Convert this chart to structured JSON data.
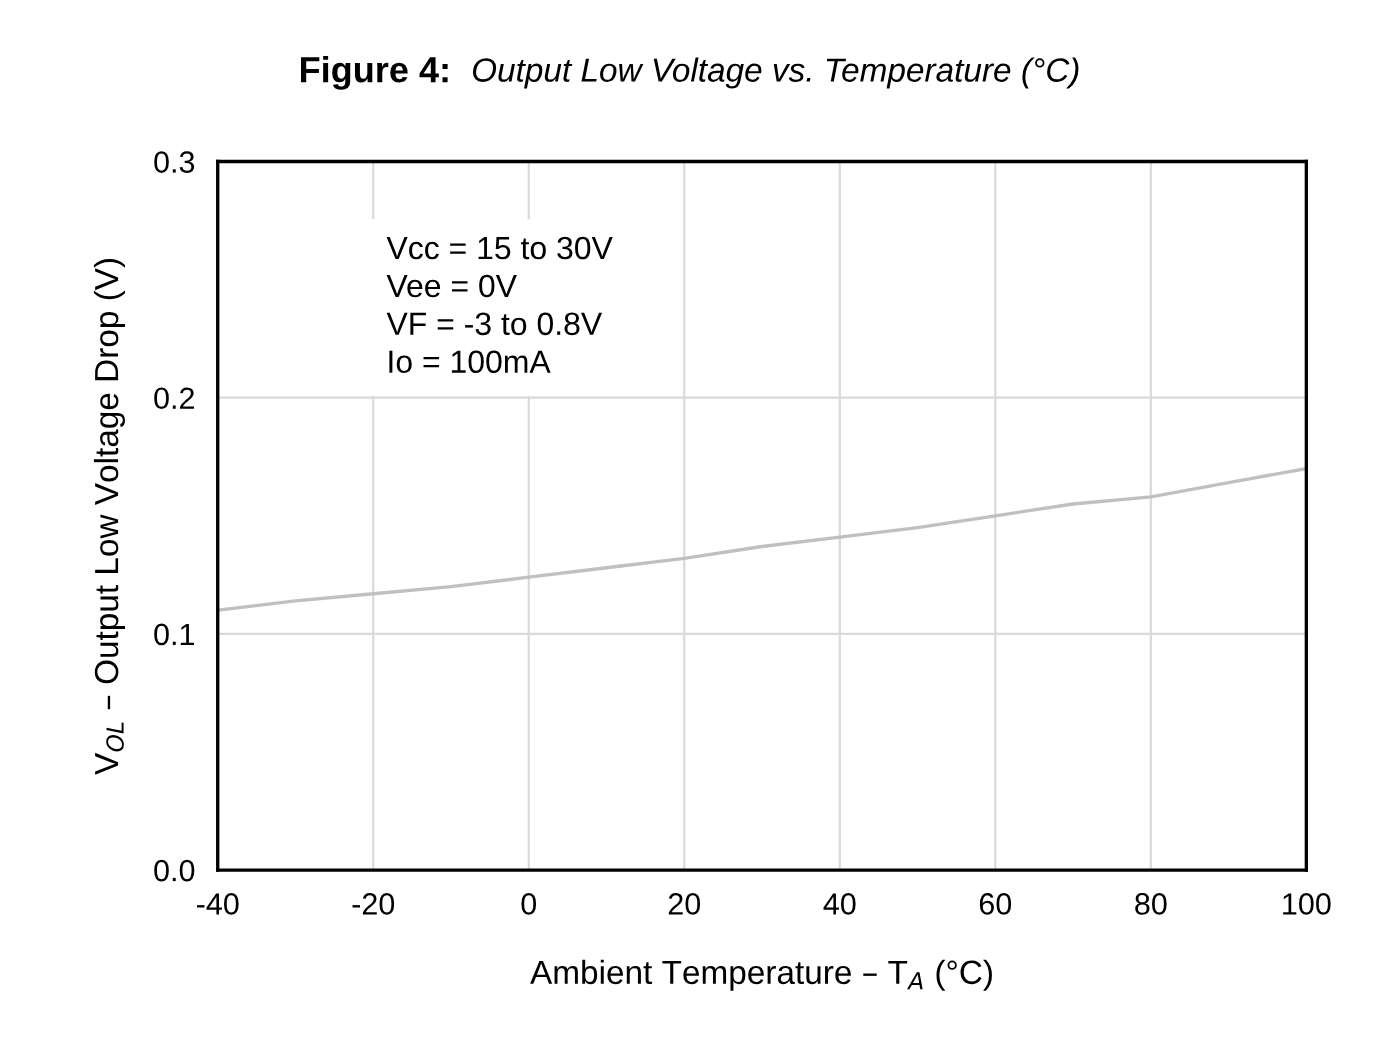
{
  "chart_data": {
    "type": "line",
    "title": "Figure 4:",
    "subtitle": "Output Low Voltage vs. Temperature (°C)",
    "xlabel": "Ambient Temperature – T$_{A}$ (°C)",
    "ylabel": "V$_{OL}$ – Output Low Voltage Drop (V)",
    "annotations": [
      "Vcc = 15 to 30V\nVee = 0V\nVF = -3 to 0.8V\nIo = 100mA"
    ],
    "x": [
      -40,
      -30,
      -20,
      -10,
      0,
      10,
      20,
      30,
      40,
      50,
      60,
      70,
      80,
      90,
      100
    ],
    "series": [
      {
        "color": "#c0c0c0",
        "values": [
          0.11,
          0.114,
          0.117,
          0.12,
          0.124,
          0.128,
          0.132,
          0.137,
          0.141,
          0.145,
          0.15,
          0.155,
          0.158,
          0.164,
          0.17
        ]
      }
    ],
    "xlim": [
      -40,
      100
    ],
    "xticks": [
      -40,
      -20,
      0,
      20,
      40,
      60,
      80,
      100
    ],
    "ylim": [
      0,
      0.3
    ],
    "yticks": [
      {
        "value": 0,
        "label": "0.0"
      },
      0.1,
      0.2,
      0.3
    ],
    "grid": true,
    "marker": "none",
    "line_style": "solid"
  }
}
